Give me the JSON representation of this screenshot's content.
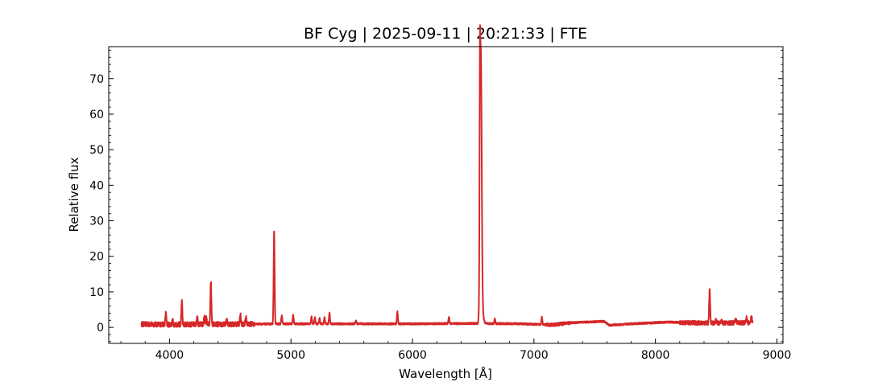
{
  "chart_data": {
    "type": "line",
    "title": "BF Cyg | 2025-09-11 | 20:21:33 | FTE",
    "xlabel": "Wavelength [Å]",
    "ylabel": "Relative flux",
    "xlim": [
      3500,
      9050
    ],
    "ylim": [
      -4.5,
      79
    ],
    "x_ticks": [
      4000,
      5000,
      6000,
      7000,
      8000,
      9000
    ],
    "y_ticks": [
      0,
      10,
      20,
      30,
      40,
      50,
      60,
      70
    ],
    "grid": false,
    "series": [
      {
        "color": "#d62728",
        "range": [
          3770,
          8800
        ],
        "continuum": [
          [
            3770,
            0.9
          ],
          [
            4000,
            0.8
          ],
          [
            4500,
            0.9
          ],
          [
            5000,
            1.0
          ],
          [
            5500,
            1.0
          ],
          [
            6000,
            1.0
          ],
          [
            6500,
            1.1
          ],
          [
            6900,
            1.0
          ],
          [
            7150,
            0.7
          ],
          [
            7300,
            1.3
          ],
          [
            7580,
            1.7
          ],
          [
            7620,
            0.6
          ],
          [
            7800,
            1.0
          ],
          [
            8100,
            1.5
          ],
          [
            8400,
            1.2
          ],
          [
            8800,
            1.3
          ]
        ],
        "lines": [
          [
            6562.8,
            75.5,
            7
          ],
          [
            6555,
            39.5,
            3
          ],
          [
            6575,
            4,
            10
          ],
          [
            4861.3,
            27,
            4
          ],
          [
            4340.5,
            13,
            4
          ],
          [
            4101.7,
            7.3,
            4
          ],
          [
            8446,
            10.6,
            4
          ],
          [
            3970,
            4,
            4
          ],
          [
            4026,
            1.9,
            4
          ],
          [
            4228,
            3.2,
            4
          ],
          [
            4287,
            3.1,
            4
          ],
          [
            4303,
            2.6,
            4
          ],
          [
            4471,
            2.3,
            4
          ],
          [
            4583,
            3.6,
            4
          ],
          [
            4629,
            2.8,
            4
          ],
          [
            4924,
            3.3,
            4
          ],
          [
            5018,
            3.7,
            4
          ],
          [
            5169,
            3,
            4
          ],
          [
            5197,
            2.8,
            4
          ],
          [
            5235,
            2.5,
            4
          ],
          [
            5276,
            2.7,
            4
          ],
          [
            5317,
            4,
            4
          ],
          [
            5535,
            1.9,
            4
          ],
          [
            5876,
            4.4,
            4
          ],
          [
            6300,
            3,
            4
          ],
          [
            6678,
            2.5,
            4
          ],
          [
            7065,
            2.9,
            4
          ],
          [
            8498,
            2,
            5
          ],
          [
            8542,
            1.9,
            5
          ],
          [
            8662,
            2.2,
            5
          ],
          [
            8750,
            2.6,
            5
          ],
          [
            8790,
            2.8,
            5
          ]
        ]
      }
    ]
  }
}
